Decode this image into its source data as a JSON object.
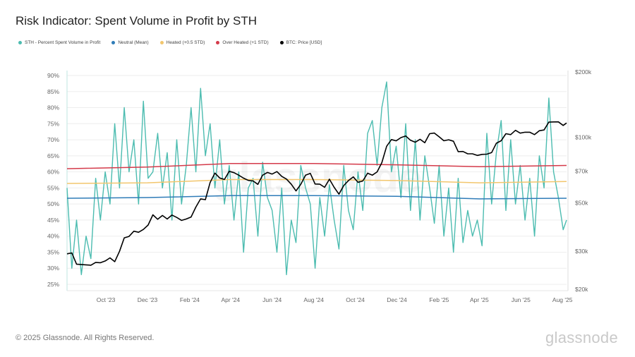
{
  "title": "Risk Indicator: Spent Volume in Profit by STH",
  "footer": "© 2025 Glassnode. All Rights Reserved.",
  "logo": "glassnode",
  "watermark": "glassnode",
  "legend": [
    {
      "label": "STH - Percent Spent Volume in Profit",
      "color": "#4cbcb0"
    },
    {
      "label": "Neutral (Mean)",
      "color": "#2f7cb8"
    },
    {
      "label": "Heated (+0.5 STD)",
      "color": "#f2c66d"
    },
    {
      "label": "Over Heated (+1 STD)",
      "color": "#d43a4a"
    },
    {
      "label": "BTC: Price [USD]",
      "color": "#000000"
    }
  ],
  "chart_data": {
    "type": "line",
    "title": "Risk Indicator: Spent Volume in Profit by STH",
    "xlim": [
      "2023-08-05",
      "2025-08-07"
    ],
    "x_ticks": [
      {
        "date": "2023-10-01",
        "label": "Oct '23"
      },
      {
        "date": "2023-12-01",
        "label": "Dec '23"
      },
      {
        "date": "2024-02-01",
        "label": "Feb '24"
      },
      {
        "date": "2024-04-01",
        "label": "Apr '24"
      },
      {
        "date": "2024-06-01",
        "label": "Jun '24"
      },
      {
        "date": "2024-08-01",
        "label": "Aug '24"
      },
      {
        "date": "2024-10-01",
        "label": "Oct '24"
      },
      {
        "date": "2024-12-01",
        "label": "Dec '24"
      },
      {
        "date": "2025-02-01",
        "label": "Feb '25"
      },
      {
        "date": "2025-04-01",
        "label": "Apr '25"
      },
      {
        "date": "2025-06-01",
        "label": "Jun '25"
      },
      {
        "date": "2025-08-01",
        "label": "Aug '25"
      }
    ],
    "y_left": {
      "ylim": [
        25,
        90
      ],
      "ticks": [
        25,
        30,
        35,
        40,
        45,
        50,
        55,
        60,
        65,
        70,
        75,
        80,
        85,
        90
      ],
      "tick_labels": [
        "25%",
        "30%",
        "35%",
        "40%",
        "45%",
        "50%",
        "55%",
        "60%",
        "65%",
        "70%",
        "75%",
        "80%",
        "85%",
        "90%"
      ],
      "grid": true
    },
    "y_right": {
      "scale": "log",
      "ylim": [
        20000,
        200000
      ],
      "ticks": [
        20000,
        30000,
        50000,
        70000,
        100000,
        200000
      ],
      "tick_labels": [
        "$20k",
        "$30k",
        "$50k",
        "$70k",
        "$100k",
        "$200k"
      ]
    },
    "dates": [
      "2023-08-05",
      "2023-08-12",
      "2023-08-19",
      "2023-08-26",
      "2023-09-02",
      "2023-09-09",
      "2023-09-16",
      "2023-09-23",
      "2023-09-30",
      "2023-10-07",
      "2023-10-14",
      "2023-10-21",
      "2023-10-28",
      "2023-11-04",
      "2023-11-11",
      "2023-11-18",
      "2023-11-25",
      "2023-12-02",
      "2023-12-09",
      "2023-12-16",
      "2023-12-23",
      "2023-12-30",
      "2024-01-06",
      "2024-01-13",
      "2024-01-20",
      "2024-01-27",
      "2024-02-03",
      "2024-02-10",
      "2024-02-17",
      "2024-02-24",
      "2024-03-02",
      "2024-03-09",
      "2024-03-16",
      "2024-03-23",
      "2024-03-30",
      "2024-04-06",
      "2024-04-13",
      "2024-04-20",
      "2024-04-27",
      "2024-05-04",
      "2024-05-11",
      "2024-05-18",
      "2024-05-25",
      "2024-06-01",
      "2024-06-08",
      "2024-06-15",
      "2024-06-22",
      "2024-06-29",
      "2024-07-06",
      "2024-07-13",
      "2024-07-20",
      "2024-07-27",
      "2024-08-03",
      "2024-08-10",
      "2024-08-17",
      "2024-08-24",
      "2024-08-31",
      "2024-09-07",
      "2024-09-14",
      "2024-09-21",
      "2024-09-28",
      "2024-10-05",
      "2024-10-12",
      "2024-10-19",
      "2024-10-26",
      "2024-11-02",
      "2024-11-09",
      "2024-11-16",
      "2024-11-23",
      "2024-11-30",
      "2024-12-07",
      "2024-12-14",
      "2024-12-21",
      "2024-12-28",
      "2025-01-04",
      "2025-01-11",
      "2025-01-18",
      "2025-01-25",
      "2025-02-01",
      "2025-02-08",
      "2025-02-15",
      "2025-02-22",
      "2025-03-01",
      "2025-03-08",
      "2025-03-15",
      "2025-03-22",
      "2025-03-29",
      "2025-04-05",
      "2025-04-12",
      "2025-04-19",
      "2025-04-26",
      "2025-05-03",
      "2025-05-10",
      "2025-05-17",
      "2025-05-24",
      "2025-05-31",
      "2025-06-07",
      "2025-06-14",
      "2025-06-21",
      "2025-06-28",
      "2025-07-05",
      "2025-07-12",
      "2025-07-19",
      "2025-07-26",
      "2025-08-02",
      "2025-08-07"
    ],
    "series": [
      {
        "name": "STH - Percent Spent Volume in Profit",
        "axis": "left",
        "color": "#4cbcb0",
        "values": [
          55,
          30,
          45,
          28,
          40,
          33,
          58,
          45,
          60,
          50,
          75,
          55,
          80,
          60,
          70,
          50,
          82,
          58,
          60,
          72,
          55,
          66,
          45,
          70,
          50,
          62,
          80,
          60,
          86,
          65,
          75,
          55,
          70,
          50,
          62,
          45,
          60,
          35,
          55,
          58,
          40,
          63,
          52,
          48,
          35,
          55,
          28,
          45,
          38,
          62,
          55,
          50,
          30,
          52,
          40,
          56,
          45,
          36,
          62,
          48,
          42,
          60,
          48,
          72,
          76,
          62,
          80,
          88,
          60,
          68,
          52,
          75,
          48,
          70,
          45,
          65,
          55,
          44,
          62,
          40,
          55,
          35,
          58,
          38,
          48,
          40,
          45,
          37,
          72,
          50,
          66,
          76,
          48,
          70,
          50,
          62,
          45,
          58,
          40,
          65,
          55,
          83,
          60,
          52,
          42,
          45
        ]
      },
      {
        "name": "BTC: Price [USD]",
        "axis": "right",
        "color": "#000000",
        "values": [
          29100,
          29400,
          26100,
          26000,
          25900,
          25800,
          26600,
          26500,
          27000,
          27900,
          26800,
          29900,
          34500,
          35000,
          37000,
          36600,
          37700,
          39500,
          44000,
          42000,
          43700,
          42100,
          43900,
          42800,
          41500,
          42100,
          43000,
          47800,
          52100,
          51700,
          62000,
          68500,
          65000,
          64000,
          69800,
          68800,
          67000,
          64900,
          63400,
          63000,
          60800,
          67000,
          69000,
          67800,
          69600,
          66200,
          64300,
          60900,
          56700,
          60800,
          67000,
          68300,
          61000,
          60900,
          58900,
          64200,
          58900,
          54800,
          60000,
          63300,
          65800,
          62100,
          63000,
          68400,
          67000,
          69400,
          76500,
          91000,
          97700,
          96400,
          99800,
          101500,
          97000,
          95000,
          98000,
          94500,
          104000,
          104700,
          100600,
          96500,
          97500,
          96000,
          86000,
          86100,
          84000,
          84000,
          82600,
          83500,
          83700,
          85100,
          94000,
          96500,
          104000,
          103000,
          107800,
          104600,
          105600,
          105600,
          103000,
          107300,
          108200,
          117500,
          117800,
          117900,
          113500,
          116500
        ]
      }
    ],
    "bands": {
      "dates": [
        "2023-08-05",
        "2023-12-01",
        "2024-04-01",
        "2024-08-01",
        "2024-12-01",
        "2025-04-01",
        "2025-08-07"
      ],
      "series": [
        {
          "name": "Neutral (Mean)",
          "color": "#2f7cb8",
          "values": [
            51.8,
            52.0,
            52.6,
            52.6,
            52.4,
            51.6,
            51.8
          ]
        },
        {
          "name": "Heated (+0.5 STD)",
          "color": "#f2c66d",
          "values": [
            56.4,
            56.6,
            57.6,
            57.6,
            57.3,
            56.6,
            57.0
          ]
        },
        {
          "name": "Over Heated (+1 STD)",
          "color": "#d43a4a",
          "values": [
            61.0,
            61.5,
            62.6,
            62.6,
            62.2,
            61.6,
            62.0
          ]
        }
      ]
    }
  }
}
